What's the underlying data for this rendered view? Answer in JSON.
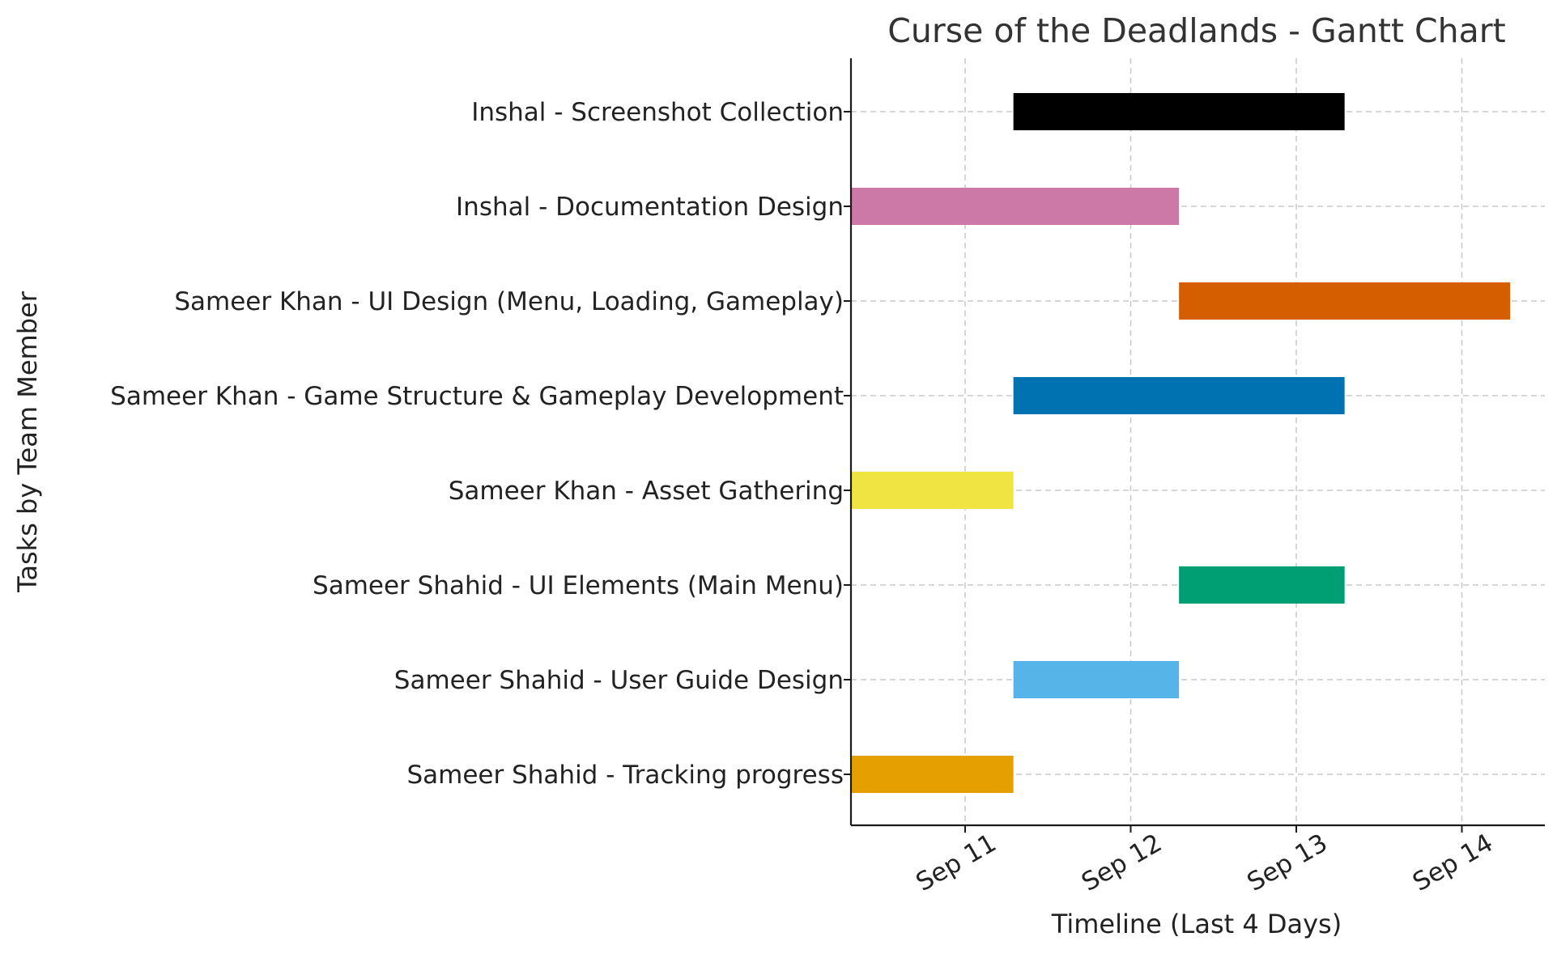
{
  "chart_data": {
    "type": "bar",
    "orientation": "horizontal-gantt",
    "title": "Curse of the Deadlands - Gantt Chart",
    "xlabel": "Timeline (Last 4 Days)",
    "ylabel": "Tasks by Team Member",
    "x_ticks": [
      "Sep 11",
      "Sep 12",
      "Sep 13",
      "Sep 14"
    ],
    "x_tick_values": [
      "2024-09-11",
      "2024-09-12",
      "2024-09-13",
      "2024-09-14"
    ],
    "xlim": [
      "2024-09-10T07:49",
      "2024-09-14T12:00"
    ],
    "grid": true,
    "tasks": [
      {
        "label": "Inshal - Screenshot Collection",
        "start": "2024-09-11T07:00",
        "end": "2024-09-13T07:00",
        "color": "#000000"
      },
      {
        "label": "Inshal - Documentation Design",
        "start": "2024-09-10T07:00",
        "end": "2024-09-12T07:00",
        "color": "#CC79A7"
      },
      {
        "label": "Sameer Khan - UI Design (Menu, Loading, Gameplay)",
        "start": "2024-09-12T07:00",
        "end": "2024-09-14T07:00",
        "color": "#D55E00"
      },
      {
        "label": "Sameer Khan - Game Structure & Gameplay Development",
        "start": "2024-09-11T07:00",
        "end": "2024-09-13T07:00",
        "color": "#0072B2"
      },
      {
        "label": "Sameer Khan - Asset Gathering",
        "start": "2024-09-10T07:00",
        "end": "2024-09-11T07:00",
        "color": "#F0E442"
      },
      {
        "label": "Sameer Shahid - UI Elements (Main Menu)",
        "start": "2024-09-12T07:00",
        "end": "2024-09-13T07:00",
        "color": "#009E73"
      },
      {
        "label": "Sameer Shahid - User Guide Design",
        "start": "2024-09-11T07:00",
        "end": "2024-09-12T07:00",
        "color": "#56B4E9"
      },
      {
        "label": "Sameer Shahid - Tracking progress",
        "start": "2024-09-10T07:00",
        "end": "2024-09-11T07:00",
        "color": "#E69F00"
      }
    ]
  }
}
